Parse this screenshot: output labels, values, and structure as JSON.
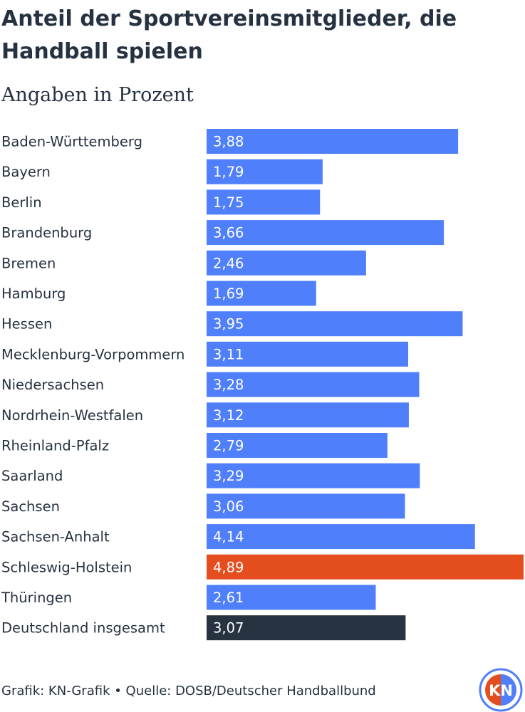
{
  "title": "Anteil der Sportvereinsmitglieder, die Handball spielen",
  "subtitle": "Angaben in Prozent",
  "footer": "Grafik: KN-Grafik • Quelle: DOSB/Deutscher Handballbund",
  "logo_text": "KN",
  "colors": {
    "default": "#4f7ffa",
    "highlight": "#e44e1f",
    "total": "#273340",
    "label_text": "#ffffff"
  },
  "chart_data": {
    "type": "bar",
    "orientation": "horizontal",
    "categories": [
      "Baden-Württemberg",
      "Bayern",
      "Berlin",
      "Brandenburg",
      "Bremen",
      "Hamburg",
      "Hessen",
      "Mecklenburg-Vorpommern",
      "Niedersachsen",
      "Nordrhein-Westfalen",
      "Rheinland-Pfalz",
      "Saarland",
      "Sachsen",
      "Sachsen-Anhalt",
      "Schleswig-Holstein",
      "Thüringen",
      "Deutschland insgesamt"
    ],
    "values": [
      3.88,
      1.79,
      1.75,
      3.66,
      2.46,
      1.69,
      3.95,
      3.11,
      3.28,
      3.12,
      2.79,
      3.29,
      3.06,
      4.14,
      4.89,
      2.61,
      3.07
    ],
    "value_labels": [
      "3,88",
      "1,79",
      "1,75",
      "3,66",
      "2,46",
      "1,69",
      "3,95",
      "3,11",
      "3,28",
      "3,12",
      "2,79",
      "3,29",
      "3,06",
      "4,14",
      "4,89",
      "2,61",
      "3,07"
    ],
    "highlight": "Schleswig-Holstein",
    "total": "Deutschland insgesamt",
    "xlim": [
      0,
      4.89
    ],
    "title": "Anteil der Sportvereinsmitglieder, die Handball spielen",
    "subtitle": "Angaben in Prozent",
    "grid": false,
    "legend": "none"
  }
}
